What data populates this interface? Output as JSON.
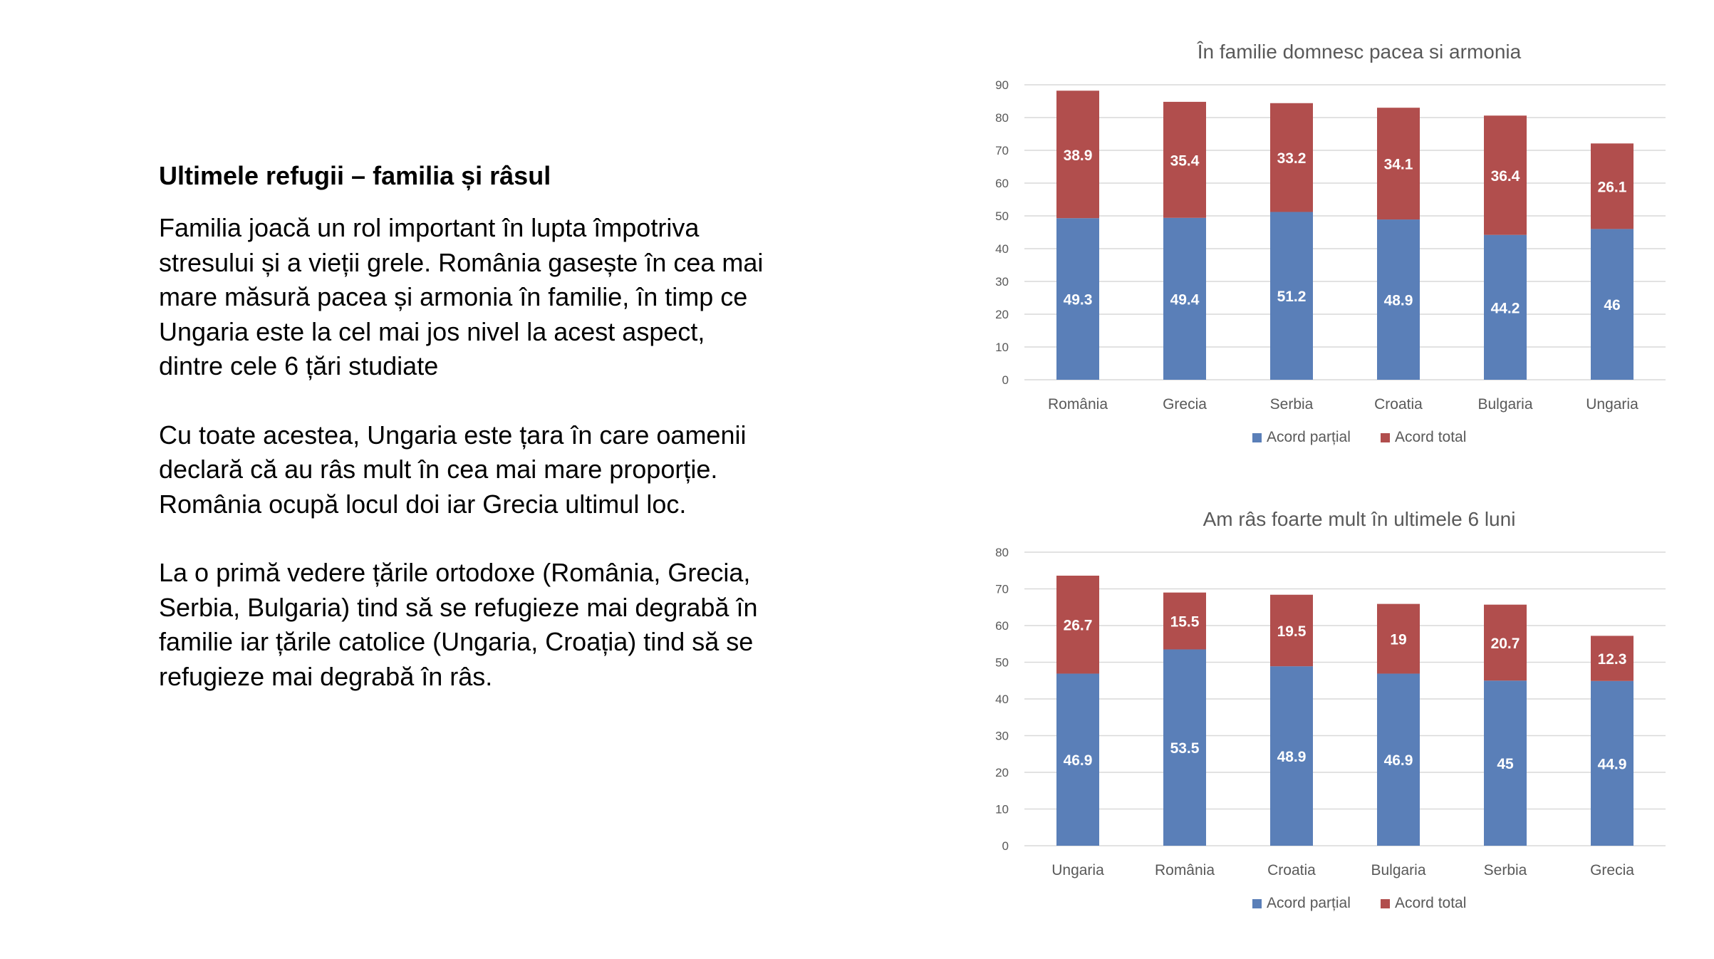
{
  "slide": {
    "heading": "Ultimele refugii – familia și râsul",
    "paragraphs": [
      "Familia joacă un rol important în lupta împotriva stresului și a vieții grele. România gasește în cea mai mare măsură pacea și armonia în familie, în timp ce Ungaria este la cel mai jos nivel la acest aspect, dintre cele 6 țări studiate",
      "Cu toate acestea, Ungaria este țara în care oamenii declară că au râs mult în cea mai mare proporție. România ocupă locul doi iar Grecia ultimul loc.",
      "La o primă vedere țările ortodoxe (România, Grecia, Serbia, Bulgaria) tind să se refugieze mai degrabă în  familie iar țările catolice (Ungaria, Croația) tind să se refugieze mai degrabă în râs."
    ]
  },
  "colors": {
    "partial": "#5a7fb8",
    "total": "#b14e4d",
    "grid": "#d9d9d9",
    "axis_text": "#595959",
    "title_text": "#595959"
  },
  "chart_data": [
    {
      "type": "bar",
      "stacked": true,
      "title": "În familie domnesc pacea si armonia",
      "categories": [
        "România",
        "Grecia",
        "Serbia",
        "Croatia",
        "Bulgaria",
        "Ungaria"
      ],
      "series": [
        {
          "name": "Acord parțial",
          "values": [
            49.3,
            49.4,
            51.2,
            48.9,
            44.2,
            46
          ]
        },
        {
          "name": "Acord total",
          "values": [
            38.9,
            35.4,
            33.2,
            34.1,
            36.4,
            26.1
          ]
        }
      ],
      "ylim": [
        0,
        90
      ],
      "yticks": [
        0,
        10,
        20,
        30,
        40,
        50,
        60,
        70,
        80,
        90
      ],
      "grid": true,
      "legend": "bottom",
      "xlabel": "",
      "ylabel": ""
    },
    {
      "type": "bar",
      "stacked": true,
      "title": "Am râs foarte mult în ultimele 6 luni",
      "categories": [
        "Ungaria",
        "România",
        "Croatia",
        "Bulgaria",
        "Serbia",
        "Grecia"
      ],
      "series": [
        {
          "name": "Acord parțial",
          "values": [
            46.9,
            53.5,
            48.9,
            46.9,
            45,
            44.9
          ]
        },
        {
          "name": "Acord total",
          "values": [
            26.7,
            15.5,
            19.5,
            19,
            20.7,
            12.3
          ]
        }
      ],
      "ylim": [
        0,
        80
      ],
      "yticks": [
        0,
        10,
        20,
        30,
        40,
        50,
        60,
        70,
        80
      ],
      "grid": true,
      "legend": "bottom",
      "xlabel": "",
      "ylabel": ""
    }
  ]
}
